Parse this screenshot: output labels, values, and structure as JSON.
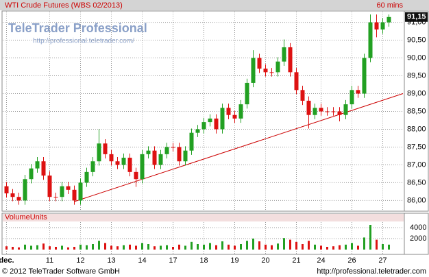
{
  "chart_data": [
    {
      "type": "candlestick",
      "title": "WTI Crude Futures (WBS 02/2013)",
      "interval": "60 mins",
      "logo": "TeleTrader Professional",
      "logo_url": "http://professional.teletrader.com/",
      "up_color": "#22a022",
      "down_color": "#dd1111",
      "grid": true,
      "categories": [
        "dec.",
        null,
        null,
        null,
        null,
        null,
        null,
        "11",
        null,
        null,
        null,
        null,
        "12",
        null,
        null,
        null,
        null,
        "13",
        null,
        null,
        null,
        null,
        "14",
        null,
        null,
        null,
        null,
        "17",
        null,
        null,
        null,
        null,
        "18",
        null,
        null,
        null,
        null,
        "19",
        null,
        null,
        null,
        null,
        "20",
        null,
        null,
        null,
        null,
        "21",
        null,
        null,
        null,
        "24",
        null,
        null,
        null,
        null,
        "26",
        null,
        null,
        null,
        null,
        "27",
        null
      ],
      "open": [
        86.4,
        86.2,
        86.1,
        86.0,
        86.6,
        86.9,
        87.1,
        86.7,
        86.1,
        86.1,
        86.4,
        86.3,
        86.0,
        86.5,
        86.8,
        87.1,
        87.6,
        87.3,
        87.1,
        87.0,
        87.2,
        86.8,
        86.6,
        87.3,
        87.4,
        87.0,
        87.3,
        87.5,
        87.5,
        87.1,
        87.4,
        87.9,
        88.0,
        88.2,
        88.3,
        88.0,
        88.6,
        88.4,
        88.3,
        88.7,
        89.3,
        90.0,
        89.7,
        89.6,
        89.6,
        89.9,
        90.3,
        89.6,
        89.1,
        88.8,
        88.4,
        88.6,
        88.5,
        88.5,
        88.5,
        88.4,
        88.7,
        89.1,
        89.0,
        90.0,
        91.0,
        90.8,
        91.0
      ],
      "high": [
        86.52,
        86.32,
        86.22,
        86.72,
        87.02,
        87.22,
        87.22,
        86.82,
        86.22,
        86.52,
        86.52,
        86.42,
        86.62,
        86.92,
        87.22,
        88.0,
        87.72,
        87.42,
        87.22,
        87.32,
        87.32,
        86.92,
        87.42,
        87.52,
        87.52,
        87.42,
        87.62,
        87.62,
        87.62,
        87.52,
        88.02,
        88.12,
        88.32,
        88.42,
        88.42,
        88.72,
        88.72,
        88.52,
        88.82,
        89.42,
        90.22,
        90.12,
        89.82,
        89.72,
        90.02,
        90.52,
        90.42,
        89.72,
        89.22,
        88.92,
        88.72,
        88.72,
        88.62,
        88.62,
        88.62,
        88.82,
        89.22,
        89.22,
        90.12,
        91.22,
        91.22,
        91.12,
        91.22
      ],
      "low": [
        86.08,
        85.98,
        85.88,
        85.88,
        86.48,
        86.78,
        86.58,
        85.98,
        85.98,
        85.98,
        86.18,
        85.88,
        85.88,
        86.38,
        86.68,
        86.98,
        87.18,
        86.98,
        86.88,
        86.88,
        86.68,
        86.38,
        86.48,
        87.18,
        86.88,
        86.88,
        87.18,
        87.38,
        86.98,
        86.98,
        87.28,
        87.78,
        87.88,
        88.08,
        87.88,
        87.88,
        88.28,
        88.18,
        88.18,
        88.58,
        89.18,
        89.58,
        89.48,
        89.48,
        89.48,
        89.78,
        89.48,
        88.98,
        88.68,
        88.02,
        88.28,
        88.38,
        88.38,
        88.38,
        88.22,
        88.28,
        88.58,
        88.88,
        88.88,
        89.88,
        90.58,
        90.68,
        90.88
      ],
      "close": [
        86.2,
        86.1,
        86.0,
        86.6,
        86.9,
        87.1,
        86.7,
        86.1,
        86.1,
        86.4,
        86.3,
        86.0,
        86.5,
        86.8,
        87.1,
        87.6,
        87.3,
        87.1,
        87.0,
        87.2,
        86.8,
        86.6,
        87.3,
        87.4,
        87.0,
        87.3,
        87.5,
        87.5,
        87.1,
        87.4,
        87.9,
        88.0,
        88.2,
        88.3,
        88.0,
        88.6,
        88.4,
        88.3,
        88.7,
        89.3,
        90.0,
        89.7,
        89.6,
        89.6,
        89.9,
        90.3,
        89.6,
        89.1,
        88.8,
        88.4,
        88.6,
        88.5,
        88.5,
        88.5,
        88.4,
        88.7,
        89.1,
        89.0,
        90.0,
        91.0,
        90.8,
        91.0,
        91.15
      ],
      "ylim": [
        85.7,
        91.3
      ],
      "yticks": [
        {
          "value": 86,
          "label": "86,00"
        },
        {
          "value": 86.5,
          "label": "86,50"
        },
        {
          "value": 87,
          "label": "87,00"
        },
        {
          "value": 87.5,
          "label": "87,50"
        },
        {
          "value": 88,
          "label": "88,00"
        },
        {
          "value": 88.5,
          "label": "88,50"
        },
        {
          "value": 89,
          "label": "89,00"
        },
        {
          "value": 89.5,
          "label": "89,50"
        },
        {
          "value": 90,
          "label": "90,00"
        },
        {
          "value": 90.5,
          "label": "90,50"
        },
        {
          "value": 91,
          "label": "91,00"
        }
      ],
      "last_price": {
        "value": 91.15,
        "label": "91,15"
      },
      "trend_line": {
        "color": "#cc0000",
        "start": 85.97,
        "end": 89.0
      }
    },
    {
      "type": "bar",
      "title": "VolumeUnits",
      "values": [
        600,
        500,
        400,
        900,
        700,
        800,
        1100,
        600,
        500,
        700,
        400,
        500,
        900,
        800,
        1000,
        1600,
        1200,
        700,
        600,
        800,
        900,
        700,
        1200,
        1000,
        600,
        700,
        800,
        500,
        900,
        700,
        1400,
        1000,
        900,
        1200,
        800,
        1500,
        900,
        700,
        1000,
        1600,
        2000,
        1500,
        900,
        800,
        1100,
        2100,
        1800,
        1400,
        1000,
        1600,
        900,
        700,
        500,
        600,
        800,
        900,
        1200,
        700,
        2200,
        4500,
        1800,
        1000,
        900
      ],
      "ylim": [
        0,
        5000
      ],
      "yticks": [
        2000,
        4000
      ],
      "grid": true,
      "footer": "© 2012 TeleTrader Software GmbH",
      "footer_url": "http://professional.teletrader.com"
    }
  ]
}
